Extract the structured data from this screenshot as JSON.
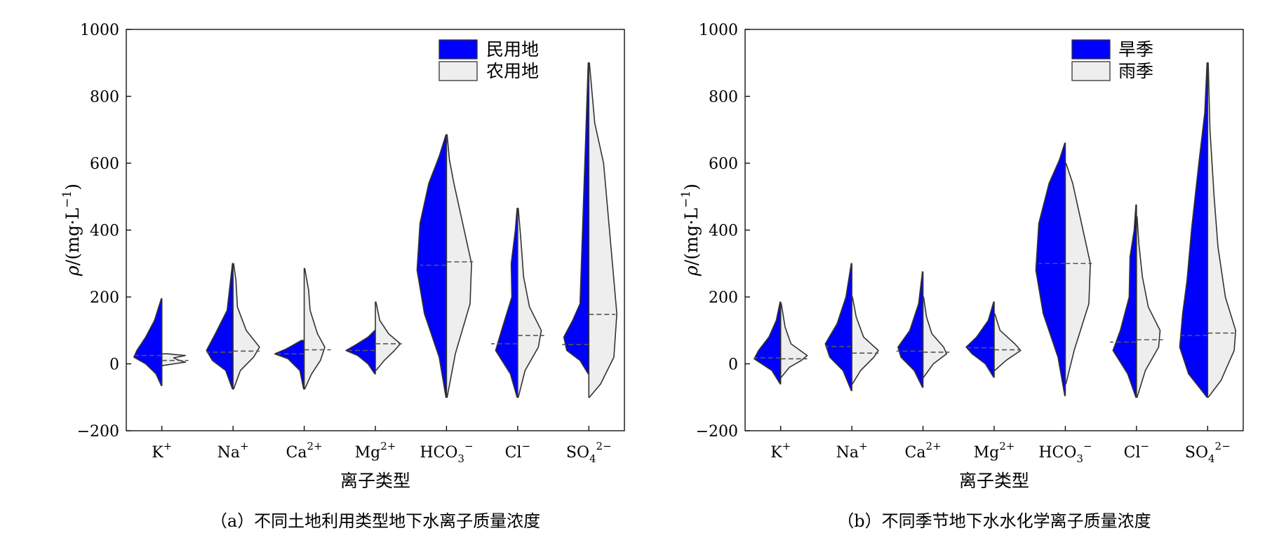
{
  "figure": {
    "panels": [
      {
        "caption": "（a）不同土地利用类型地下水离子质量浓度",
        "legend": [
          "民用地",
          "农用地"
        ]
      },
      {
        "caption": "（b）不同季节地下水水化学离子质量浓度",
        "legend": [
          "旱季",
          "雨季"
        ]
      }
    ]
  },
  "colors": {
    "left_half": "#0000ff",
    "right_half": "#eeeeee",
    "outline": "#333333"
  },
  "chart_data": [
    {
      "type": "violin",
      "split": true,
      "xlabel": "离子类型",
      "ylabel": "ρ/(mg·L−1)",
      "ylim": [
        -200,
        1000
      ],
      "yticks": [
        -200,
        0,
        200,
        400,
        600,
        800,
        1000
      ],
      "categories": [
        "K+",
        "Na+",
        "Ca2+",
        "Mg2+",
        "HCO3−",
        "Cl−",
        "SO42−"
      ],
      "category_labels": [
        {
          "base": "K",
          "sup": "+"
        },
        {
          "base": "Na",
          "sup": "+"
        },
        {
          "base": "Ca",
          "sup": "2+"
        },
        {
          "base": "Mg",
          "sup": "2+"
        },
        {
          "base": "HCO",
          "sub": "3",
          "sup": "−"
        },
        {
          "base": "Cl",
          "sup": "−"
        },
        {
          "base": "SO",
          "sub": "4",
          "sup": "2−"
        }
      ],
      "series": [
        {
          "name": "民用地",
          "side": "left",
          "medians": [
            25,
            35,
            30,
            40,
            295,
            60,
            58
          ],
          "shapes": [
            [
              [
                -65,
                0.02
              ],
              [
                -30,
                0.2
              ],
              [
                0,
                0.55
              ],
              [
                20,
                0.95
              ],
              [
                40,
                0.85
              ],
              [
                80,
                0.55
              ],
              [
                130,
                0.25
              ],
              [
                195,
                0.02
              ]
            ],
            [
              [
                -75,
                0.02
              ],
              [
                -20,
                0.25
              ],
              [
                10,
                0.7
              ],
              [
                40,
                0.9
              ],
              [
                90,
                0.6
              ],
              [
                160,
                0.2
              ],
              [
                300,
                0.02
              ]
            ],
            [
              [
                -75,
                0.02
              ],
              [
                -20,
                0.15
              ],
              [
                15,
                0.55
              ],
              [
                30,
                1.0
              ],
              [
                45,
                0.6
              ],
              [
                70,
                0.1
              ]
            ],
            [
              [
                -30,
                0.02
              ],
              [
                0,
                0.25
              ],
              [
                25,
                0.6
              ],
              [
                40,
                1.0
              ],
              [
                55,
                0.7
              ],
              [
                80,
                0.25
              ],
              [
                100,
                0.02
              ]
            ],
            [
              [
                -100,
                0.02
              ],
              [
                20,
                0.25
              ],
              [
                150,
                0.75
              ],
              [
                280,
                1.0
              ],
              [
                420,
                0.9
              ],
              [
                540,
                0.6
              ],
              [
                620,
                0.25
              ],
              [
                685,
                0.02
              ]
            ],
            [
              [
                -100,
                0.02
              ],
              [
                -30,
                0.25
              ],
              [
                40,
                0.75
              ],
              [
                100,
                0.55
              ],
              [
                200,
                0.2
              ],
              [
                300,
                0.22
              ],
              [
                400,
                0.08
              ],
              [
                465,
                0.02
              ]
            ],
            [
              [
                -30,
                0.02
              ],
              [
                10,
                0.3
              ],
              [
                40,
                0.75
              ],
              [
                80,
                0.85
              ],
              [
                130,
                0.55
              ],
              [
                180,
                0.3
              ],
              [
                900,
                0.02
              ]
            ]
          ]
        },
        {
          "name": "农用地",
          "side": "right",
          "medians": [
            10,
            38,
            42,
            60,
            305,
            85,
            148
          ],
          "shapes": [
            [
              [
                -5,
                0.02
              ],
              [
                5,
                0.8
              ],
              [
                12,
                0.55
              ],
              [
                18,
                0.4
              ],
              [
                25,
                0.8
              ],
              [
                30,
                0.2
              ]
            ],
            [
              [
                -75,
                0.02
              ],
              [
                -20,
                0.25
              ],
              [
                20,
                0.7
              ],
              [
                50,
                0.9
              ],
              [
                100,
                0.45
              ],
              [
                170,
                0.15
              ],
              [
                250,
                0.1
              ],
              [
                300,
                0.02
              ]
            ],
            [
              [
                -75,
                0.02
              ],
              [
                -30,
                0.25
              ],
              [
                10,
                0.55
              ],
              [
                50,
                0.7
              ],
              [
                90,
                0.45
              ],
              [
                160,
                0.2
              ],
              [
                220,
                0.15
              ],
              [
                285,
                0.02
              ]
            ],
            [
              [
                -20,
                0.02
              ],
              [
                10,
                0.3
              ],
              [
                40,
                0.65
              ],
              [
                60,
                0.85
              ],
              [
                90,
                0.45
              ],
              [
                130,
                0.15
              ],
              [
                185,
                0.02
              ]
            ],
            [
              [
                -100,
                0.02
              ],
              [
                30,
                0.3
              ],
              [
                180,
                0.8
              ],
              [
                300,
                0.85
              ],
              [
                420,
                0.55
              ],
              [
                540,
                0.25
              ],
              [
                610,
                0.1
              ],
              [
                685,
                0.02
              ]
            ],
            [
              [
                -100,
                0.02
              ],
              [
                -20,
                0.25
              ],
              [
                50,
                0.7
              ],
              [
                100,
                0.8
              ],
              [
                170,
                0.4
              ],
              [
                260,
                0.2
              ],
              [
                380,
                0.1
              ],
              [
                465,
                0.02
              ]
            ],
            [
              [
                -100,
                0.02
              ],
              [
                -60,
                0.4
              ],
              [
                20,
                0.85
              ],
              [
                150,
                0.95
              ],
              [
                300,
                0.8
              ],
              [
                450,
                0.65
              ],
              [
                600,
                0.5
              ],
              [
                720,
                0.2
              ],
              [
                900,
                0.02
              ]
            ]
          ]
        }
      ]
    },
    {
      "type": "violin",
      "split": true,
      "xlabel": "离子类型",
      "ylabel": "ρ/(mg·L−1)",
      "ylim": [
        -200,
        1000
      ],
      "yticks": [
        -200,
        0,
        200,
        400,
        600,
        800,
        1000
      ],
      "categories": [
        "K+",
        "Na+",
        "Ca2+",
        "Mg2+",
        "HCO3−",
        "Cl−",
        "SO42−"
      ],
      "category_labels": [
        {
          "base": "K",
          "sup": "+"
        },
        {
          "base": "Na",
          "sup": "+"
        },
        {
          "base": "Ca",
          "sup": "2+"
        },
        {
          "base": "Mg",
          "sup": "2+"
        },
        {
          "base": "HCO",
          "sub": "3",
          "sup": "−"
        },
        {
          "base": "Cl",
          "sup": "−"
        },
        {
          "base": "SO",
          "sub": "4",
          "sup": "2−"
        }
      ],
      "series": [
        {
          "name": "旱季",
          "side": "left",
          "medians": [
            18,
            52,
            38,
            48,
            300,
            65,
            85
          ],
          "shapes": [
            [
              [
                -60,
                0.02
              ],
              [
                -20,
                0.3
              ],
              [
                15,
                0.9
              ],
              [
                40,
                0.75
              ],
              [
                80,
                0.4
              ],
              [
                130,
                0.15
              ],
              [
                185,
                0.02
              ]
            ],
            [
              [
                -80,
                0.02
              ],
              [
                -20,
                0.3
              ],
              [
                20,
                0.75
              ],
              [
                60,
                0.9
              ],
              [
                120,
                0.5
              ],
              [
                200,
                0.2
              ],
              [
                300,
                0.02
              ]
            ],
            [
              [
                -70,
                0.02
              ],
              [
                -20,
                0.3
              ],
              [
                20,
                0.75
              ],
              [
                50,
                0.85
              ],
              [
                100,
                0.45
              ],
              [
                180,
                0.15
              ],
              [
                275,
                0.02
              ]
            ],
            [
              [
                -40,
                0.02
              ],
              [
                0,
                0.3
              ],
              [
                30,
                0.75
              ],
              [
                50,
                0.95
              ],
              [
                80,
                0.6
              ],
              [
                130,
                0.2
              ],
              [
                185,
                0.02
              ]
            ],
            [
              [
                -95,
                0.02
              ],
              [
                20,
                0.25
              ],
              [
                150,
                0.75
              ],
              [
                280,
                1.0
              ],
              [
                420,
                0.9
              ],
              [
                540,
                0.55
              ],
              [
                610,
                0.2
              ],
              [
                660,
                0.02
              ]
            ],
            [
              [
                -100,
                0.02
              ],
              [
                -30,
                0.3
              ],
              [
                40,
                0.8
              ],
              [
                100,
                0.55
              ],
              [
                200,
                0.25
              ],
              [
                320,
                0.22
              ],
              [
                400,
                0.08
              ],
              [
                475,
                0.02
              ]
            ],
            [
              [
                -100,
                0.02
              ],
              [
                -30,
                0.65
              ],
              [
                50,
                0.95
              ],
              [
                150,
                0.85
              ],
              [
                250,
                0.7
              ],
              [
                400,
                0.55
              ],
              [
                600,
                0.3
              ],
              [
                750,
                0.1
              ],
              [
                900,
                0.02
              ]
            ]
          ]
        },
        {
          "name": "雨季",
          "side": "right",
          "medians": [
            15,
            32,
            35,
            42,
            300,
            72,
            92
          ],
          "shapes": [
            [
              [
                -40,
                0.02
              ],
              [
                -10,
                0.3
              ],
              [
                10,
                0.7
              ],
              [
                25,
                0.9
              ],
              [
                60,
                0.35
              ],
              [
                110,
                0.15
              ],
              [
                180,
                0.02
              ]
            ],
            [
              [
                -60,
                0.02
              ],
              [
                -20,
                0.3
              ],
              [
                20,
                0.75
              ],
              [
                40,
                0.9
              ],
              [
                80,
                0.4
              ],
              [
                140,
                0.15
              ],
              [
                200,
                0.02
              ]
            ],
            [
              [
                -40,
                0.02
              ],
              [
                0,
                0.35
              ],
              [
                30,
                0.8
              ],
              [
                50,
                0.7
              ],
              [
                90,
                0.3
              ],
              [
                140,
                0.12
              ],
              [
                200,
                0.02
              ]
            ],
            [
              [
                -20,
                0.02
              ],
              [
                10,
                0.4
              ],
              [
                40,
                0.9
              ],
              [
                60,
                0.7
              ],
              [
                100,
                0.2
              ],
              [
                150,
                0.02
              ]
            ],
            [
              [
                -60,
                0.02
              ],
              [
                40,
                0.3
              ],
              [
                180,
                0.8
              ],
              [
                300,
                0.85
              ],
              [
                420,
                0.55
              ],
              [
                540,
                0.25
              ],
              [
                600,
                0.02
              ]
            ],
            [
              [
                -100,
                0.02
              ],
              [
                -20,
                0.3
              ],
              [
                50,
                0.75
              ],
              [
                100,
                0.8
              ],
              [
                170,
                0.4
              ],
              [
                260,
                0.2
              ],
              [
                360,
                0.08
              ],
              [
                440,
                0.02
              ]
            ],
            [
              [
                -100,
                0.02
              ],
              [
                -50,
                0.45
              ],
              [
                40,
                0.9
              ],
              [
                100,
                0.95
              ],
              [
                200,
                0.6
              ],
              [
                350,
                0.35
              ],
              [
                500,
                0.22
              ],
              [
                700,
                0.08
              ],
              [
                900,
                0.02
              ]
            ]
          ]
        }
      ]
    }
  ]
}
